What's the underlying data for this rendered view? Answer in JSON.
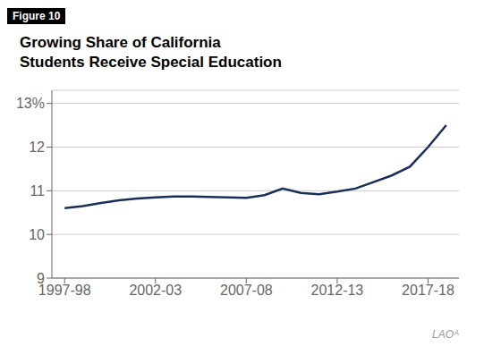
{
  "chart_data": {
    "type": "line",
    "title": "Growing Share of California\nStudents Receive Special Education",
    "annotations": [
      "Figure 10",
      "LAOᴬ"
    ],
    "x": [
      1997,
      1998,
      1999,
      2000,
      2001,
      2002,
      2003,
      2004,
      2005,
      2006,
      2007,
      2008,
      2009,
      2010,
      2011,
      2012,
      2013,
      2014,
      2015,
      2016,
      2017,
      2018
    ],
    "values": [
      10.6,
      10.65,
      10.72,
      10.78,
      10.82,
      10.85,
      10.87,
      10.87,
      10.86,
      10.85,
      10.84,
      10.9,
      11.05,
      10.95,
      10.92,
      10.98,
      11.05,
      11.2,
      11.35,
      11.55,
      12.0,
      12.5
    ],
    "color": "#1a2e5a",
    "xlim": [
      1996.3,
      2018.7
    ],
    "xticks": [
      {
        "value": 1997,
        "label": "1997-98"
      },
      {
        "value": 2002,
        "label": "2002-03"
      },
      {
        "value": 2007,
        "label": "2007-08"
      },
      {
        "value": 2012,
        "label": "2012-13"
      },
      {
        "value": 2017,
        "label": "2017-18"
      }
    ],
    "ylim": [
      9,
      13.3
    ],
    "yticks": [
      9,
      10,
      11,
      12,
      {
        "value": 13,
        "label": "13%"
      }
    ],
    "grid": true
  }
}
